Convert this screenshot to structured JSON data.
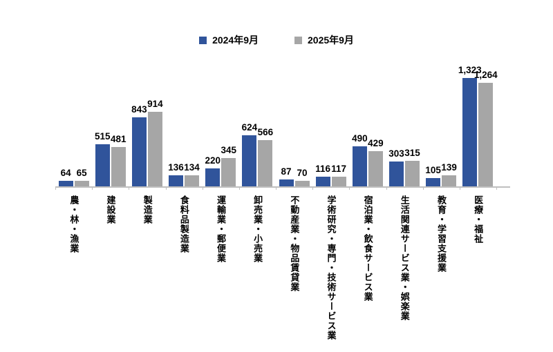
{
  "chart_data": {
    "type": "bar",
    "title": "",
    "xlabel": "",
    "ylabel": "",
    "categories": [
      "農・林・漁業",
      "建設業",
      "製造業",
      "食料品製造業",
      "運輸業・郵便業",
      "卸売業・小売業",
      "不動産業・物品賃貸業",
      "学術研究・専門・技術サービス業",
      "宿泊業・飲食サービス業",
      "生活関連サービス業・娯楽業",
      "教育・学習支援業",
      "医療・福祉"
    ],
    "series": [
      {
        "name": "2024年9月",
        "color": "#30549b",
        "values": [
          64,
          515,
          843,
          136,
          220,
          624,
          87,
          116,
          490,
          303,
          105,
          1323
        ]
      },
      {
        "name": "2025年9月",
        "color": "#a6a6a6",
        "values": [
          65,
          481,
          914,
          134,
          345,
          566,
          70,
          117,
          429,
          315,
          139,
          1264
        ]
      }
    ],
    "value_labels": [
      "64",
      "515",
      "843",
      "136",
      "220",
      "624",
      "87",
      "116",
      "490",
      "303",
      "105",
      "1,323",
      "65",
      "481",
      "914",
      "134",
      "345",
      "566",
      "70",
      "117",
      "429",
      "315",
      "139",
      "1,264"
    ],
    "ylim": [
      0,
      1400
    ],
    "grid": false,
    "legend_position": "top",
    "axis_color": "#bfbfbf",
    "label_color": "#000000"
  }
}
